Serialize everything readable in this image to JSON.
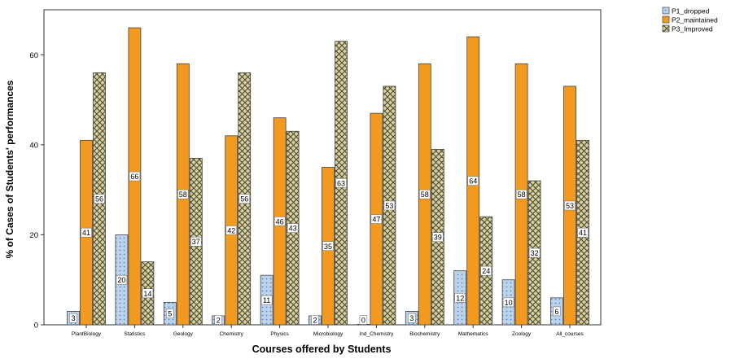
{
  "chart_data": {
    "type": "bar",
    "xlabel": "Courses offered by Students",
    "ylabel": "% of Cases of Students' performances",
    "ylim": [
      0,
      70
    ],
    "yticks": [
      0,
      20,
      40,
      60
    ],
    "grid": false,
    "legend_position": "top-right, outside plot",
    "categories": [
      "PlantBiology",
      "Statistics",
      "Geology",
      "Chemistry",
      "Physics",
      "Microbiology",
      "Ind_Chemistry",
      "Biochemistry",
      "Mathematics",
      "Zoology",
      "All_courses"
    ],
    "series": [
      {
        "name": "P1_dropped",
        "color": "#bcd3ec",
        "pattern": "dots",
        "values": [
          3,
          20,
          5,
          2,
          11,
          2,
          0,
          3,
          12,
          10,
          6
        ],
        "labels": [
          "3",
          "20",
          "5",
          "2",
          "11",
          "2",
          "0",
          "3",
          "12",
          "10",
          "6"
        ]
      },
      {
        "name": "P2_maintained",
        "color": "#f29a1f",
        "pattern": "solid",
        "values": [
          41,
          66,
          58,
          42,
          46,
          35,
          47,
          58,
          64,
          58,
          53
        ],
        "labels": [
          "41",
          "66",
          "58",
          "42",
          "46",
          "35",
          "47",
          "58",
          "64",
          "58",
          "53"
        ]
      },
      {
        "name": "P3_Improved",
        "color": "#d8cfa4",
        "pattern": "crosshatch",
        "values": [
          56,
          14,
          37,
          56,
          43,
          63,
          53,
          39,
          24,
          32,
          41
        ],
        "labels": [
          "56",
          "14",
          "37",
          "56",
          "43",
          "63",
          "53",
          "39",
          "24",
          "32",
          "41"
        ]
      }
    ]
  },
  "legend": {
    "items": [
      "P1_dropped",
      "P2_maintained",
      "P3_Improved"
    ]
  }
}
